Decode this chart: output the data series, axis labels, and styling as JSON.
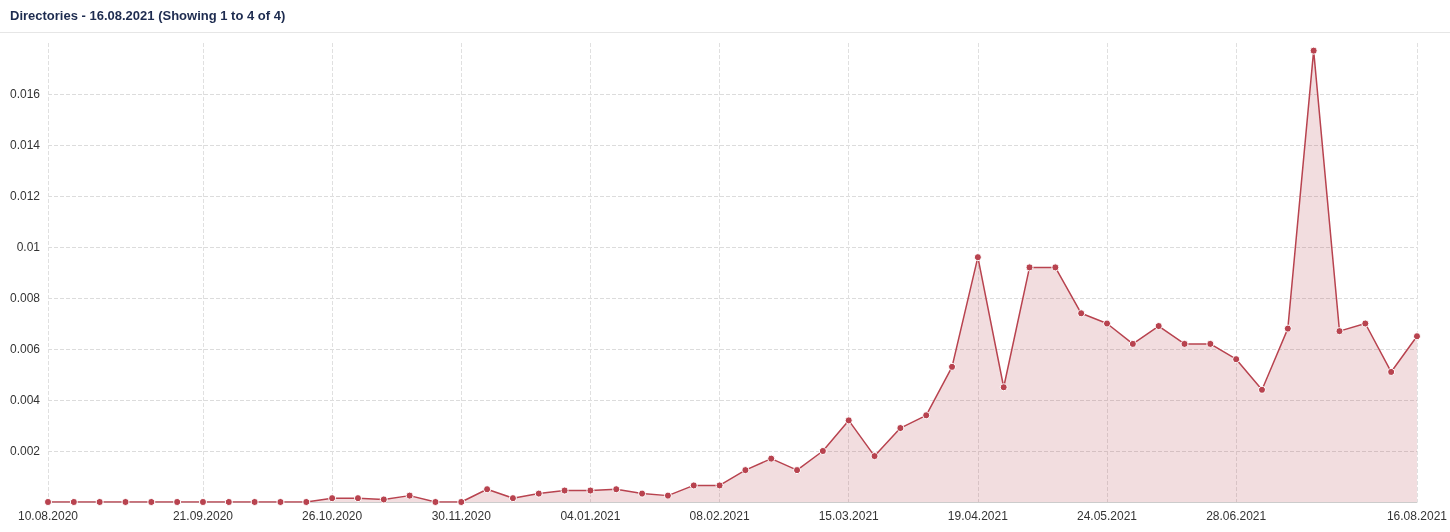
{
  "chart_data": {
    "type": "area",
    "title": "Directories - 16.08.2021 (Showing 1 to 4 of 4)",
    "x": [
      "2020-08-10",
      "2020-08-17",
      "2020-08-24",
      "2020-08-31",
      "2020-09-07",
      "2020-09-14",
      "2020-09-21",
      "2020-09-28",
      "2020-10-05",
      "2020-10-12",
      "2020-10-19",
      "2020-10-26",
      "2020-11-02",
      "2020-11-09",
      "2020-11-16",
      "2020-11-23",
      "2020-11-30",
      "2020-12-07",
      "2020-12-14",
      "2020-12-21",
      "2020-12-28",
      "2021-01-04",
      "2021-01-11",
      "2021-01-18",
      "2021-01-25",
      "2021-02-01",
      "2021-02-08",
      "2021-02-15",
      "2021-02-22",
      "2021-03-01",
      "2021-03-08",
      "2021-03-15",
      "2021-03-22",
      "2021-03-29",
      "2021-04-05",
      "2021-04-12",
      "2021-04-19",
      "2021-04-26",
      "2021-05-03",
      "2021-05-10",
      "2021-05-17",
      "2021-05-24",
      "2021-05-31",
      "2021-06-07",
      "2021-06-14",
      "2021-06-21",
      "2021-06-28",
      "2021-07-05",
      "2021-07-12",
      "2021-07-19",
      "2021-07-26",
      "2021-08-02",
      "2021-08-09",
      "2021-08-16"
    ],
    "series": [
      {
        "color": "#b8434f",
        "values": [
          0,
          0,
          0,
          0,
          0,
          0,
          0,
          0,
          0,
          0,
          0,
          0.00015,
          0.00015,
          0.0001,
          0.00025,
          0,
          0,
          0.0005,
          0.00015,
          0.00033,
          0.00045,
          0.00045,
          0.0005,
          0.00033,
          0.00025,
          0.00065,
          0.00065,
          0.00125,
          0.0017,
          0.00125,
          0.002,
          0.0032,
          0.0018,
          0.0029,
          0.0034,
          0.0053,
          0.0096,
          0.0045,
          0.0092,
          0.0092,
          0.0074,
          0.007,
          0.0062,
          0.0069,
          0.0062,
          0.0062,
          0.0056,
          0.0044,
          0.0068,
          0.0177,
          0.0067,
          0.007,
          0.0051,
          0.0065
        ]
      }
    ],
    "xlim": [
      "2020-08-10",
      "2021-08-16"
    ],
    "xticks": [
      {
        "value": "2020-08-10",
        "label": "10.08.2020"
      },
      {
        "value": "2020-09-21",
        "label": "21.09.2020"
      },
      {
        "value": "2020-10-26",
        "label": "26.10.2020"
      },
      {
        "value": "2020-11-30",
        "label": "30.11.2020"
      },
      {
        "value": "2021-01-04",
        "label": "04.01.2021"
      },
      {
        "value": "2021-02-08",
        "label": "08.02.2021"
      },
      {
        "value": "2021-03-15",
        "label": "15.03.2021"
      },
      {
        "value": "2021-04-19",
        "label": "19.04.2021"
      },
      {
        "value": "2021-05-24",
        "label": "24.05.2021"
      },
      {
        "value": "2021-06-28",
        "label": "28.06.2021"
      },
      {
        "value": "2021-08-16",
        "label": "16.08.2021"
      }
    ],
    "ylim": [
      0,
      0.018
    ],
    "yticks": [
      0.002,
      0.004,
      0.006,
      0.008,
      0.01,
      0.012,
      0.014,
      0.016
    ],
    "grid": true,
    "marker": "circle",
    "line_style": "solid"
  }
}
